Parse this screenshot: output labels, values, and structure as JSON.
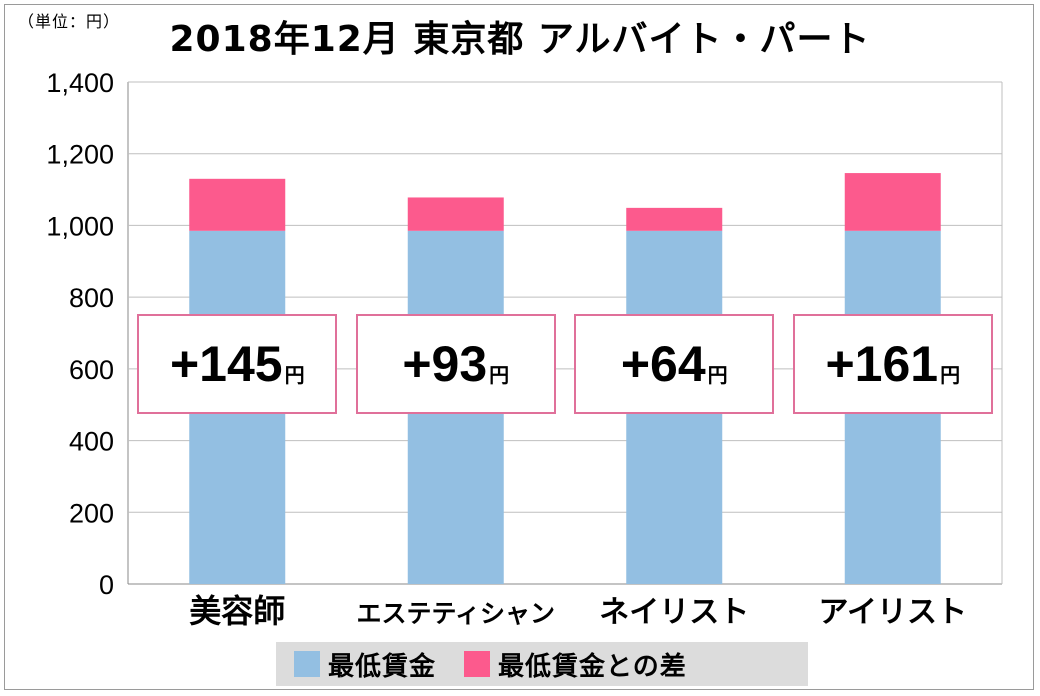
{
  "header": {
    "unit_label": "（単位：円）",
    "title": "2018年12月 東京都 アルバイト・パート"
  },
  "colors": {
    "base": "#93bfe2",
    "diff": "#fc5a8d",
    "box_border": "#e0709a",
    "grid": "#bfbfbf"
  },
  "chart_data": {
    "type": "bar",
    "stacked": true,
    "title": "2018年12月 東京都 アルバイト・パート",
    "unit": "（単位：円）",
    "categories": [
      "美容師",
      "エステティシャン",
      "ネイリスト",
      "アイリスト"
    ],
    "series": [
      {
        "name": "最低賃金",
        "values": [
          985,
          985,
          985,
          985
        ],
        "color": "#93bfe2"
      },
      {
        "name": "最低賃金との差",
        "values": [
          145,
          93,
          64,
          161
        ],
        "color": "#fc5a8d"
      }
    ],
    "ylim": [
      0,
      1400
    ],
    "yticks": [
      "0",
      "200",
      "400",
      "600",
      "800",
      "1,000",
      "1,200",
      "1,400"
    ],
    "yticks_values": [
      0,
      200,
      400,
      600,
      800,
      1000,
      1200,
      1400
    ],
    "grid": true,
    "legend": "bottom",
    "annotations": [
      {
        "sign": "+",
        "value": "145",
        "unit": "円"
      },
      {
        "sign": "+",
        "value": "93",
        "unit": "円"
      },
      {
        "sign": "+",
        "value": "64",
        "unit": "円"
      },
      {
        "sign": "+",
        "value": "161",
        "unit": "円"
      }
    ]
  },
  "legend": {
    "items": [
      {
        "label": "最低賃金",
        "color": "#93bfe2"
      },
      {
        "label": "最低賃金との差",
        "color": "#fc5a8d"
      }
    ]
  }
}
